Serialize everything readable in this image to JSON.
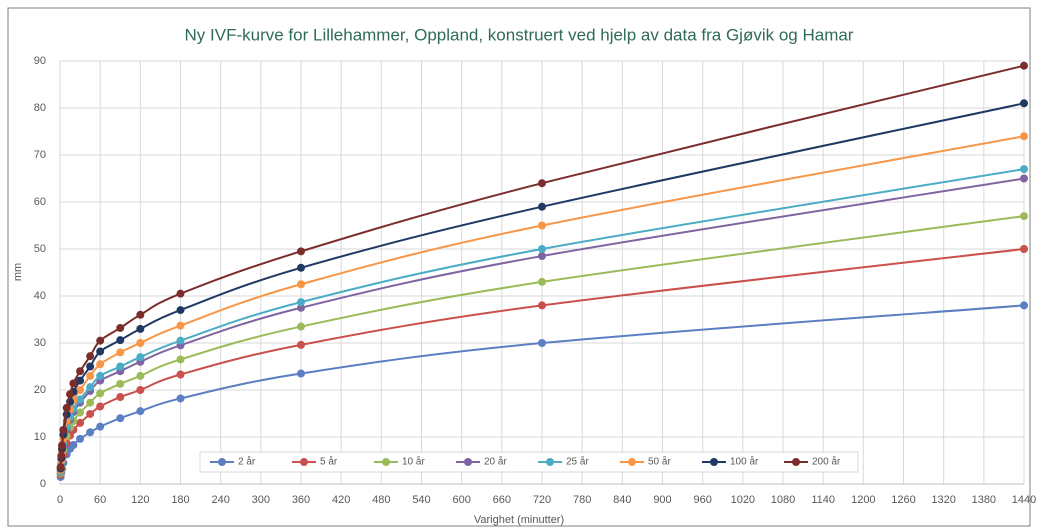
{
  "chart_data": {
    "type": "line",
    "title": "Ny IVF-kurve for Lillehammer, Oppland, konstruert ved hjelp av data fra Gjøvik og Hamar",
    "x_label": "Varighet (minutter)",
    "y_label": "mm",
    "x": [
      1,
      2,
      3,
      5,
      10,
      15,
      20,
      30,
      45,
      60,
      90,
      120,
      180,
      360,
      720,
      1440
    ],
    "series": [
      {
        "name": "2 år",
        "color": "#5b7fc2",
        "values": [
          1.5,
          2.4,
          3.2,
          4.5,
          6.3,
          7.5,
          8.3,
          9.6,
          11,
          12.2,
          14,
          15.5,
          18.2,
          23.5,
          30,
          38
        ]
      },
      {
        "name": "5 år",
        "color": "#c9504c",
        "values": [
          2,
          3.3,
          4.5,
          6.2,
          8.7,
          10.3,
          11.5,
          13,
          14.9,
          16.5,
          18.5,
          20,
          23.3,
          29.6,
          38,
          50
        ]
      },
      {
        "name": "10 år",
        "color": "#9bbb59",
        "values": [
          2.3,
          3.8,
          5.2,
          7.2,
          10.2,
          12,
          13.4,
          15.2,
          17.3,
          19.3,
          21.3,
          23,
          26.5,
          33.5,
          43,
          57
        ]
      },
      {
        "name": "20 år",
        "color": "#8064a2",
        "values": [
          2.6,
          4.3,
          5.9,
          8.2,
          11.6,
          13.7,
          15.3,
          17.3,
          19.8,
          22,
          24,
          26,
          29.5,
          37.5,
          48.5,
          65
        ]
      },
      {
        "name": "25 år",
        "color": "#4bacc6",
        "values": [
          2.7,
          4.5,
          6.2,
          8.6,
          12.1,
          14.3,
          16,
          18,
          20.6,
          23,
          25,
          27,
          30.5,
          38.7,
          50,
          67
        ]
      },
      {
        "name": "50 år",
        "color": "#f79646",
        "values": [
          3,
          5,
          6.9,
          9.6,
          13.5,
          15.9,
          17.8,
          20,
          23,
          25.5,
          28,
          30,
          33.7,
          42.5,
          55,
          74
        ]
      },
      {
        "name": "100 år",
        "color": "#1f3864",
        "values": [
          3.3,
          5.5,
          7.5,
          10.5,
          14.8,
          17.5,
          19.6,
          22,
          25,
          28.2,
          30.6,
          33,
          37,
          46,
          59,
          81
        ]
      },
      {
        "name": "200 år",
        "color": "#7b2d2b",
        "values": [
          3.6,
          6,
          8.2,
          11.5,
          16.2,
          19.1,
          21.4,
          24,
          27.2,
          30.5,
          33.2,
          36,
          40.5,
          49.5,
          64,
          89
        ]
      }
    ],
    "xlim": [
      0,
      1440
    ],
    "xticks": [
      0,
      60,
      120,
      180,
      240,
      300,
      360,
      420,
      480,
      540,
      600,
      660,
      720,
      780,
      840,
      900,
      960,
      1020,
      1080,
      1140,
      1200,
      1260,
      1320,
      1380,
      1440
    ],
    "ylim": [
      0,
      90
    ],
    "yticks": [
      0,
      10,
      20,
      30,
      40,
      50,
      60,
      70,
      80,
      90
    ],
    "grid": true,
    "legend": "bottom"
  }
}
